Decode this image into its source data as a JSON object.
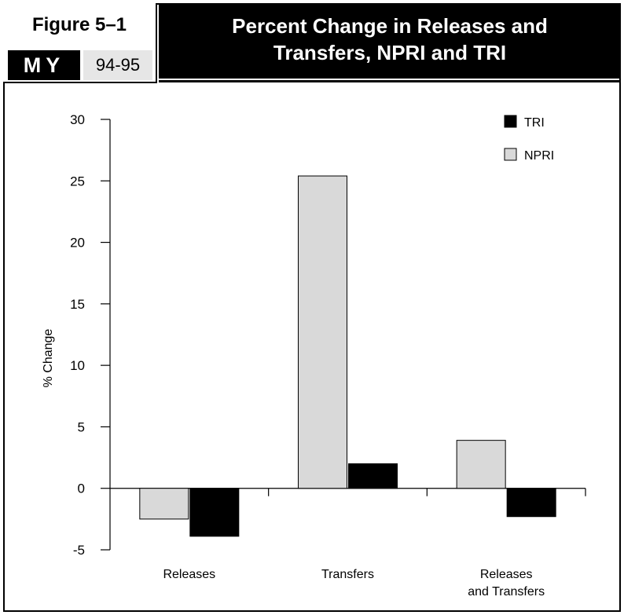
{
  "header": {
    "figure_label": "Figure 5–1",
    "badge_text": "MY",
    "year_text": "94-95",
    "title_line1": "Percent Change in Releases and",
    "title_line2": "Transfers,  NPRI and TRI"
  },
  "colors": {
    "tri": "#000000",
    "npri": "#d9d9d9",
    "title_bg": "#000000",
    "year_bg": "#e6e6e6"
  },
  "chart_data": {
    "type": "bar",
    "title": "Percent Change in Releases and Transfers,  NPRI and TRI",
    "ylabel": "% Change",
    "xlabel": "",
    "ylim": [
      -5,
      30
    ],
    "yticks": [
      -5,
      0,
      5,
      10,
      15,
      20,
      25,
      30
    ],
    "categories": [
      [
        "Releases"
      ],
      [
        "Transfers"
      ],
      [
        "Releases",
        "and Transfers"
      ]
    ],
    "series": [
      {
        "name": "NPRI",
        "values": [
          -2.5,
          25.4,
          3.9
        ]
      },
      {
        "name": "TRI",
        "values": [
          -3.9,
          2.0,
          -2.3
        ]
      }
    ],
    "legend": {
      "position": "top-right",
      "order": [
        "TRI",
        "NPRI"
      ]
    },
    "grid": false
  }
}
